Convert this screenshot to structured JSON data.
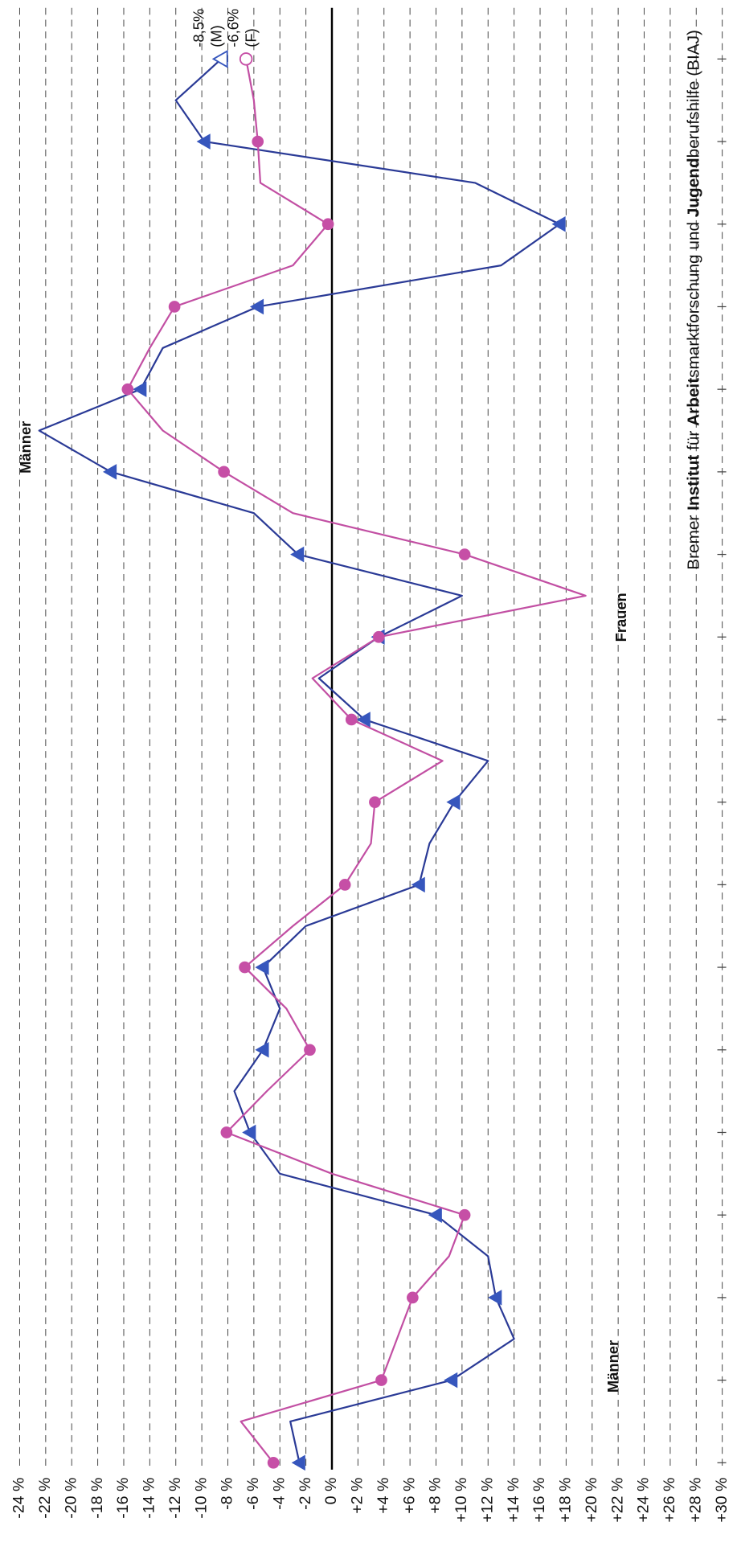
{
  "chart_data": {
    "type": "line",
    "categories": [
      null,
      null,
      null,
      null,
      null,
      null,
      null,
      null,
      null,
      null,
      null,
      null,
      null,
      null,
      null,
      null,
      null,
      null,
      null,
      null,
      null,
      null,
      null,
      null,
      null,
      null,
      null,
      null,
      null,
      null,
      null,
      null,
      null,
      null,
      null
    ],
    "series": [
      {
        "name": "Männer",
        "color": "#2a3a96",
        "marker_color": "#3656bd",
        "marker": "triangle",
        "end_label": [
          "-8,5%",
          "(M)"
        ],
        "values": [
          -2.5,
          -3.2,
          9.2,
          14,
          12.6,
          12,
          8,
          -4,
          -6.3,
          -7.5,
          -5.3,
          -4,
          -5.3,
          -2,
          6.7,
          7.5,
          9.4,
          12,
          2.5,
          -1,
          3.6,
          10,
          -2.6,
          -6,
          -17,
          -22.5,
          -14.7,
          -13,
          -5.7,
          13,
          17.5,
          11,
          -9.8,
          -12,
          -8.5
        ]
      },
      {
        "name": "Frauen",
        "color": "#c24fa3",
        "marker_color": "#c64fa6",
        "marker": "circle",
        "end_label": [
          "-6,6%",
          "(F)"
        ],
        "values": [
          -4.5,
          -7,
          3.8,
          5,
          6.2,
          9,
          10.2,
          0,
          -8.1,
          -5,
          -1.7,
          -3.5,
          -6.7,
          -3,
          1,
          3,
          3.3,
          8.5,
          1.5,
          -1.5,
          3.6,
          19.5,
          10.2,
          -3,
          -8.3,
          -13,
          -15.7,
          -14,
          -12.1,
          -3,
          -0.3,
          -5.5,
          -5.7,
          -6,
          -6.6
        ]
      }
    ],
    "ylim": [
      -24,
      30
    ],
    "yticks": [
      {
        "value": -24,
        "label": "-24 %"
      },
      {
        "value": -22,
        "label": "-22 %"
      },
      {
        "value": -20,
        "label": "-20 %"
      },
      {
        "value": -18,
        "label": "-18 %"
      },
      {
        "value": -16,
        "label": "-16 %"
      },
      {
        "value": -14,
        "label": "-14 %"
      },
      {
        "value": -12,
        "label": "-12 %"
      },
      {
        "value": -10,
        "label": "-10 %"
      },
      {
        "value": -8,
        "label": "-8 %"
      },
      {
        "value": -6,
        "label": "-6 %"
      },
      {
        "value": -4,
        "label": "-4 %"
      },
      {
        "value": -2,
        "label": "-2 %"
      },
      {
        "value": 0,
        "label": "0 %"
      },
      {
        "value": 2,
        "label": "+2 %"
      },
      {
        "value": 4,
        "label": "+4 %"
      },
      {
        "value": 6,
        "label": "+6 %"
      },
      {
        "value": 8,
        "label": "+8 %"
      },
      {
        "value": 10,
        "label": "+10 %"
      },
      {
        "value": 12,
        "label": "+12 %"
      },
      {
        "value": 14,
        "label": "+14 %"
      },
      {
        "value": 16,
        "label": "+16 %"
      },
      {
        "value": 18,
        "label": "+18 %"
      },
      {
        "value": 20,
        "label": "+20 %"
      },
      {
        "value": 22,
        "label": "+22 %"
      },
      {
        "value": 24,
        "label": "+24 %"
      },
      {
        "value": 26,
        "label": "+26 %"
      },
      {
        "value": 28,
        "label": "+28 %"
      },
      {
        "value": 30,
        "label": "+30 %"
      }
    ],
    "grid": true,
    "annotations": [
      "Männer",
      "Männer",
      "Frauen"
    ],
    "source": [
      {
        "text": "Bremer ",
        "bold": false
      },
      {
        "text": "Institut",
        "bold": true
      },
      {
        "text": " für ",
        "bold": false
      },
      {
        "text": "Arbeit",
        "bold": true
      },
      {
        "text": "smarktforschung und ",
        "bold": false
      },
      {
        "text": "Jugend",
        "bold": true
      },
      {
        "text": "berufshilfe (BIAJ)",
        "bold": false
      }
    ]
  }
}
